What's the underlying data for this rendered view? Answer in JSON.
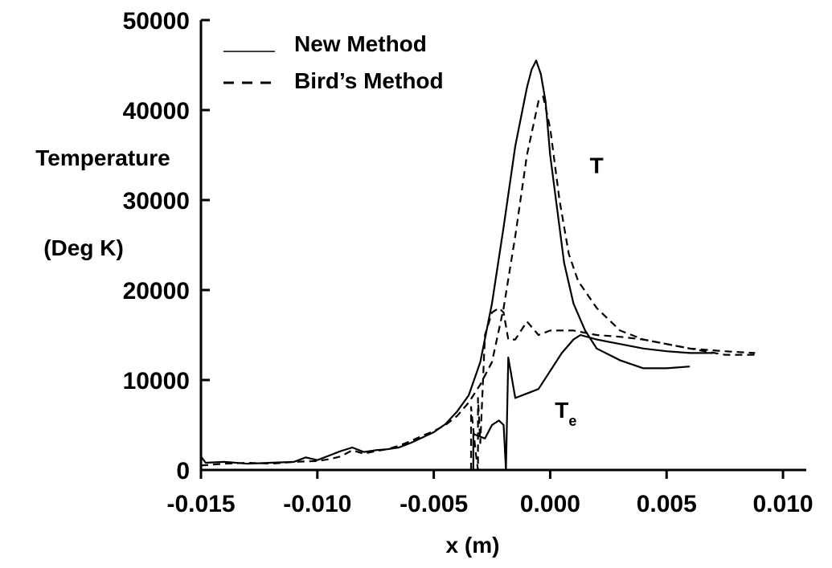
{
  "chart_data": {
    "type": "line",
    "xlabel": "x (m)",
    "ylabel": "Temperature",
    "ylabel_unit": "(Deg K)",
    "xlim": [
      -0.015,
      0.011
    ],
    "ylim": [
      0,
      50000
    ],
    "x_ticks": [
      -0.015,
      -0.01,
      -0.005,
      0.0,
      0.005,
      0.01
    ],
    "x_tick_labels": [
      "-0.015",
      "-0.010",
      "-0.005",
      "0.000",
      "0.005",
      "0.010"
    ],
    "y_ticks": [
      0,
      10000,
      20000,
      30000,
      40000,
      50000
    ],
    "y_tick_labels": [
      "0",
      "10000",
      "20000",
      "30000",
      "40000",
      "50000"
    ],
    "grid": false,
    "legend": {
      "placement": "top-left",
      "entries": [
        {
          "label": "New Method",
          "style": "solid"
        },
        {
          "label": "Bird’s Method",
          "style": "dashed"
        }
      ]
    },
    "annotations": [
      {
        "text": "T",
        "x": 0.0017,
        "y": 33000
      },
      {
        "text": "T",
        "subscript": "e",
        "x": 0.0002,
        "y": 5800
      }
    ],
    "series": [
      {
        "style": "solid",
        "points": [
          [
            -0.015,
            1500
          ],
          [
            -0.0148,
            800
          ],
          [
            -0.014,
            900
          ],
          [
            -0.013,
            700
          ],
          [
            -0.012,
            800
          ],
          [
            -0.011,
            900
          ],
          [
            -0.0105,
            1400
          ],
          [
            -0.01,
            1100
          ],
          [
            -0.0095,
            1600
          ],
          [
            -0.009,
            2100
          ],
          [
            -0.0085,
            2500
          ],
          [
            -0.008,
            2000
          ],
          [
            -0.0075,
            2200
          ],
          [
            -0.007,
            2300
          ],
          [
            -0.0065,
            2500
          ],
          [
            -0.006,
            3000
          ],
          [
            -0.0055,
            3600
          ],
          [
            -0.005,
            4200
          ],
          [
            -0.0045,
            5100
          ],
          [
            -0.004,
            6500
          ],
          [
            -0.0035,
            8300
          ],
          [
            -0.003,
            12000
          ],
          [
            -0.0025,
            18500
          ],
          [
            -0.002,
            27000
          ],
          [
            -0.0015,
            36000
          ],
          [
            -0.001,
            42500
          ],
          [
            -0.0008,
            44500
          ],
          [
            -0.0006,
            45500
          ],
          [
            -0.0004,
            44000
          ],
          [
            -0.0002,
            41000
          ],
          [
            0.0,
            35000
          ],
          [
            0.0003,
            29000
          ],
          [
            0.0006,
            23000
          ],
          [
            0.001,
            18500
          ],
          [
            0.0015,
            15500
          ],
          [
            0.002,
            13500
          ],
          [
            0.003,
            12200
          ],
          [
            0.004,
            11300
          ],
          [
            0.005,
            11300
          ],
          [
            0.006,
            11500
          ]
        ]
      },
      {
        "style": "solid",
        "points": [
          [
            -0.0033,
            0
          ],
          [
            -0.0033,
            4000
          ],
          [
            -0.0028,
            3500
          ],
          [
            -0.0025,
            5000
          ],
          [
            -0.0022,
            5500
          ],
          [
            -0.002,
            5000
          ],
          [
            -0.0019,
            0
          ],
          [
            -0.0018,
            12500
          ],
          [
            -0.0015,
            8000
          ],
          [
            -0.001,
            8500
          ],
          [
            -0.0005,
            9000
          ],
          [
            0.0,
            11000
          ],
          [
            0.0005,
            13000
          ],
          [
            0.001,
            14500
          ],
          [
            0.0013,
            15000
          ],
          [
            0.002,
            14500
          ],
          [
            0.003,
            14000
          ],
          [
            0.004,
            13500
          ],
          [
            0.005,
            13200
          ],
          [
            0.006,
            13000
          ],
          [
            0.007,
            13000
          ]
        ]
      },
      {
        "style": "dashed",
        "points": [
          [
            -0.015,
            500
          ],
          [
            -0.014,
            700
          ],
          [
            -0.013,
            800
          ],
          [
            -0.012,
            700
          ],
          [
            -0.011,
            900
          ],
          [
            -0.01,
            1000
          ],
          [
            -0.0095,
            1200
          ],
          [
            -0.009,
            1500
          ],
          [
            -0.0085,
            2200
          ],
          [
            -0.008,
            1800
          ],
          [
            -0.0075,
            2100
          ],
          [
            -0.007,
            2300
          ],
          [
            -0.0065,
            2700
          ],
          [
            -0.006,
            3200
          ],
          [
            -0.0055,
            3800
          ],
          [
            -0.005,
            4300
          ],
          [
            -0.0045,
            5000
          ],
          [
            -0.004,
            6000
          ],
          [
            -0.0035,
            7500
          ],
          [
            -0.003,
            9500
          ],
          [
            -0.0025,
            12000
          ],
          [
            -0.002,
            18000
          ],
          [
            -0.0015,
            26000
          ],
          [
            -0.001,
            35000
          ],
          [
            -0.0005,
            41000
          ],
          [
            -0.0003,
            41500
          ],
          [
            0.0,
            38000
          ],
          [
            0.0004,
            30000
          ],
          [
            0.0008,
            24000
          ],
          [
            0.0012,
            21000
          ],
          [
            0.002,
            18000
          ],
          [
            0.003,
            15500
          ],
          [
            0.004,
            14500
          ],
          [
            0.005,
            14000
          ],
          [
            0.006,
            13500
          ],
          [
            0.0075,
            13200
          ],
          [
            0.0088,
            13000
          ]
        ]
      },
      {
        "style": "dashed",
        "points": [
          [
            -0.0034,
            0
          ],
          [
            -0.0034,
            7000
          ],
          [
            -0.0032,
            2000
          ],
          [
            -0.0031,
            0
          ],
          [
            -0.0031,
            8000
          ],
          [
            -0.003,
            3000
          ],
          [
            -0.0028,
            15000
          ],
          [
            -0.0025,
            17500
          ],
          [
            -0.0022,
            18000
          ],
          [
            -0.002,
            17500
          ],
          [
            -0.0018,
            14500
          ],
          [
            -0.0015,
            14500
          ],
          [
            -0.001,
            16500
          ],
          [
            -0.0005,
            15000
          ],
          [
            0.0,
            15500
          ],
          [
            0.001,
            15500
          ],
          [
            0.002,
            15000
          ],
          [
            0.003,
            14800
          ],
          [
            0.004,
            14500
          ],
          [
            0.005,
            14000
          ],
          [
            0.006,
            13500
          ],
          [
            0.0075,
            12800
          ],
          [
            0.0088,
            12800
          ]
        ]
      }
    ]
  }
}
